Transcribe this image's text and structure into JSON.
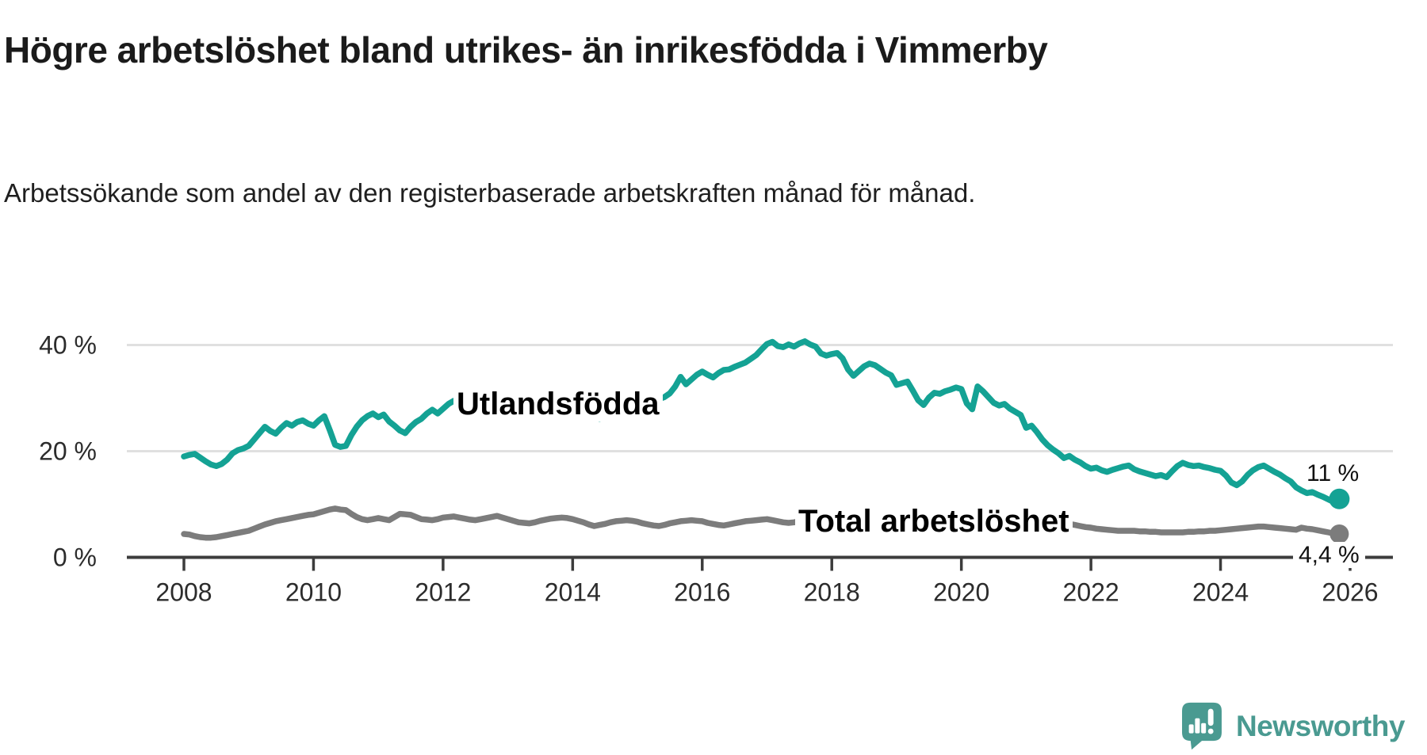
{
  "title": "Högre arbetslöshet bland utrikes- än inrikesfödda i Vimmerby",
  "subtitle": "Arbetssökande som andel av den registerbaserade arbetskraften månad för månad.",
  "logo": {
    "text": "Newsworthy"
  },
  "colors": {
    "foreign_born_line": "#14a294",
    "total_line": "#7c7c7c",
    "gridline": "#e0e0e0",
    "axis": "#3c3c3c",
    "text": "#1b1b1b",
    "logo_teal": "#4a9a91"
  },
  "chart_data": {
    "type": "line",
    "title": "Högre arbetslöshet bland utrikes- än inrikesfödda i Vimmerby",
    "subtitle": "Arbetssökande som andel av den registerbaserade arbetskraften månad för månad.",
    "xlabel": "",
    "ylabel": "",
    "x_unit": "month",
    "x_start": "2008-01",
    "x_end": "2025-11",
    "ylim": [
      0,
      44
    ],
    "grid": "horizontal",
    "legend": "inline-labels",
    "yticks": [
      {
        "value": 40,
        "label": "40 %"
      },
      {
        "value": 20,
        "label": "20 %"
      },
      {
        "value": 0,
        "label": "0 %"
      }
    ],
    "xticks": [
      {
        "year": 2008,
        "label": "2008"
      },
      {
        "year": 2010,
        "label": "2010"
      },
      {
        "year": 2012,
        "label": "2012"
      },
      {
        "year": 2014,
        "label": "2014"
      },
      {
        "year": 2016,
        "label": "2016"
      },
      {
        "year": 2018,
        "label": "2018"
      },
      {
        "year": 2020,
        "label": "2020"
      },
      {
        "year": 2022,
        "label": "2022"
      },
      {
        "year": 2024,
        "label": "2024"
      },
      {
        "year": 2026,
        "label": "2026"
      }
    ],
    "series": [
      {
        "name": "Utlandsfödda",
        "color": "#14a294",
        "end_label": "11 %",
        "end_value": 11,
        "values": [
          19.0,
          19.3,
          19.5,
          18.8,
          18.1,
          17.5,
          17.2,
          17.6,
          18.4,
          19.6,
          20.2,
          20.5,
          21.0,
          22.2,
          23.4,
          24.6,
          23.8,
          23.3,
          24.4,
          25.3,
          24.8,
          25.5,
          25.8,
          25.2,
          24.8,
          25.8,
          26.6,
          24.0,
          21.2,
          20.8,
          21.0,
          23.0,
          24.6,
          25.8,
          26.6,
          27.1,
          26.4,
          26.9,
          25.6,
          24.8,
          23.9,
          23.4,
          24.6,
          25.5,
          26.1,
          27.1,
          27.8,
          27.1,
          28.0,
          28.9,
          29.5,
          28.9,
          28.1,
          27.5,
          27.0,
          27.7,
          28.3,
          28.9,
          29.2,
          28.5,
          28.9,
          29.3,
          28.8,
          28.3,
          27.9,
          27.5,
          28.2,
          28.8,
          28.4,
          28.0,
          27.6,
          27.2,
          27.8,
          28.3,
          27.8,
          27.1,
          26.5,
          26.1,
          26.8,
          27.4,
          27.9,
          28.3,
          28.6,
          28.1,
          28.8,
          29.4,
          29.9,
          30.4,
          29.8,
          30.2,
          30.9,
          32.2,
          34.0,
          32.6,
          33.5,
          34.4,
          35.0,
          34.4,
          33.9,
          34.7,
          35.3,
          35.4,
          35.9,
          36.3,
          36.7,
          37.4,
          38.1,
          39.2,
          40.2,
          40.6,
          39.8,
          39.6,
          40.1,
          39.7,
          40.3,
          40.7,
          40.1,
          39.7,
          38.4,
          38.0,
          38.3,
          38.5,
          37.5,
          35.4,
          34.2,
          35.1,
          36.0,
          36.5,
          36.2,
          35.5,
          34.8,
          34.3,
          32.5,
          32.8,
          33.1,
          31.4,
          29.6,
          28.7,
          30.1,
          31.0,
          30.8,
          31.3,
          31.6,
          32.0,
          31.7,
          29.0,
          27.9,
          32.2,
          31.3,
          30.2,
          29.1,
          28.6,
          28.9,
          28.0,
          27.4,
          26.8,
          24.4,
          24.8,
          23.6,
          22.2,
          21.1,
          20.3,
          19.6,
          18.7,
          19.1,
          18.4,
          17.9,
          17.2,
          16.7,
          16.9,
          16.4,
          16.1,
          16.5,
          16.8,
          17.1,
          17.3,
          16.6,
          16.2,
          15.9,
          15.6,
          15.3,
          15.5,
          15.1,
          16.2,
          17.2,
          17.8,
          17.4,
          17.2,
          17.3,
          17.0,
          16.8,
          16.5,
          16.3,
          15.4,
          14.1,
          13.6,
          14.3,
          15.5,
          16.4,
          17.0,
          17.3,
          16.7,
          16.1,
          15.6,
          14.9,
          14.3,
          13.2,
          12.6,
          12.1,
          12.3,
          11.8,
          11.4,
          10.9,
          10.4,
          11.0
        ]
      },
      {
        "name": "Total arbetslöshet",
        "color": "#7c7c7c",
        "end_label": "4,4 %",
        "end_value": 4.4,
        "values": [
          4.4,
          4.3,
          4.0,
          3.8,
          3.7,
          3.7,
          3.8,
          4.0,
          4.2,
          4.4,
          4.6,
          4.8,
          5.0,
          5.4,
          5.8,
          6.2,
          6.5,
          6.8,
          7.0,
          7.2,
          7.4,
          7.6,
          7.8,
          8.0,
          8.1,
          8.4,
          8.7,
          9.0,
          9.2,
          9.0,
          8.9,
          8.2,
          7.6,
          7.2,
          7.0,
          7.2,
          7.4,
          7.2,
          7.0,
          7.6,
          8.2,
          8.1,
          8.0,
          7.6,
          7.2,
          7.1,
          7.0,
          7.2,
          7.5,
          7.6,
          7.7,
          7.5,
          7.3,
          7.1,
          7.0,
          7.2,
          7.4,
          7.6,
          7.8,
          7.5,
          7.2,
          6.9,
          6.6,
          6.5,
          6.4,
          6.6,
          6.9,
          7.1,
          7.3,
          7.4,
          7.5,
          7.4,
          7.2,
          6.9,
          6.6,
          6.2,
          5.9,
          6.1,
          6.3,
          6.6,
          6.8,
          6.9,
          7.0,
          6.9,
          6.7,
          6.4,
          6.2,
          6.0,
          5.9,
          6.1,
          6.4,
          6.6,
          6.8,
          6.9,
          7.0,
          6.9,
          6.8,
          6.5,
          6.3,
          6.1,
          6.0,
          6.2,
          6.4,
          6.6,
          6.8,
          6.9,
          7.0,
          7.1,
          7.2,
          7.0,
          6.8,
          6.6,
          6.5,
          6.6,
          6.8,
          7.0,
          7.1,
          7.2,
          7.3,
          7.2,
          7.0,
          6.8,
          6.6,
          6.4,
          6.3,
          6.4,
          6.6,
          6.8,
          6.9,
          6.8,
          6.6,
          6.4,
          6.3,
          6.1,
          6.0,
          5.8,
          5.7,
          5.8,
          6.0,
          6.2,
          6.3,
          6.4,
          6.5,
          6.4,
          6.4,
          6.5,
          6.6,
          7.4,
          7.8,
          7.9,
          8.0,
          7.9,
          7.8,
          7.7,
          7.6,
          7.5,
          7.4,
          7.3,
          7.2,
          7.0,
          6.9,
          6.7,
          6.6,
          6.4,
          6.3,
          6.1,
          5.9,
          5.7,
          5.6,
          5.4,
          5.3,
          5.2,
          5.1,
          5.0,
          5.0,
          5.0,
          5.0,
          4.9,
          4.9,
          4.8,
          4.8,
          4.7,
          4.7,
          4.7,
          4.7,
          4.7,
          4.8,
          4.8,
          4.9,
          4.9,
          5.0,
          5.0,
          5.1,
          5.2,
          5.3,
          5.4,
          5.5,
          5.6,
          5.7,
          5.8,
          5.8,
          5.7,
          5.6,
          5.5,
          5.4,
          5.3,
          5.2,
          5.6,
          5.4,
          5.3,
          5.1,
          4.9,
          4.7,
          4.5,
          4.4
        ]
      }
    ]
  }
}
